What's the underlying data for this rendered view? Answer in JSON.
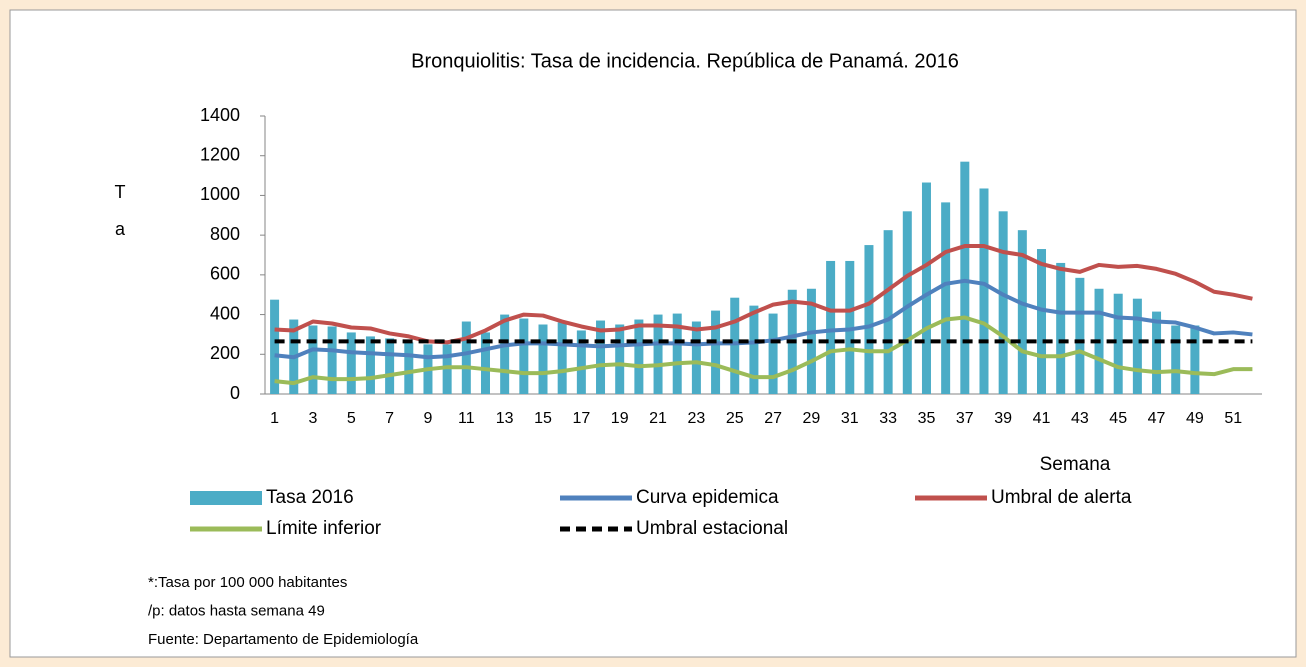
{
  "chart_data": {
    "type": "bar",
    "title": "Bronquiolitis: Tasa de incidencia. República de Panamá. 2016",
    "ylabel": [
      "T",
      "a"
    ],
    "xlabel": "Semana",
    "categories": [
      1,
      null,
      3,
      null,
      5,
      null,
      7,
      null,
      9,
      null,
      11,
      null,
      13,
      null,
      15,
      null,
      17,
      null,
      19,
      null,
      21,
      null,
      23,
      null,
      25,
      null,
      27,
      null,
      29,
      null,
      31,
      null,
      33,
      null,
      35,
      null,
      37,
      null,
      39,
      null,
      41,
      null,
      43,
      null,
      45,
      null,
      47,
      null,
      49,
      null,
      51,
      null
    ],
    "ylim": [
      0,
      1400
    ],
    "yticks": [
      0,
      200,
      400,
      600,
      800,
      1000,
      1200,
      1400
    ],
    "series": [
      {
        "name": "Tasa 2016",
        "type": "bar",
        "color": "#4bacc6",
        "values": [
          475,
          375,
          345,
          340,
          310,
          290,
          280,
          260,
          250,
          250,
          365,
          310,
          400,
          380,
          350,
          360,
          320,
          370,
          350,
          375,
          400,
          405,
          365,
          420,
          485,
          445,
          405,
          525,
          530,
          670,
          670,
          750,
          825,
          920,
          1065,
          965,
          1170,
          1035,
          920,
          825,
          730,
          660,
          585,
          530,
          505,
          480,
          415,
          345,
          345,
          null,
          null,
          null
        ]
      },
      {
        "name": "Curva epidemica",
        "type": "line",
        "color": "#4f81bd",
        "values": [
          195,
          185,
          225,
          220,
          210,
          205,
          200,
          195,
          185,
          190,
          205,
          225,
          245,
          255,
          255,
          250,
          245,
          240,
          245,
          250,
          255,
          255,
          250,
          255,
          255,
          260,
          270,
          290,
          310,
          320,
          325,
          340,
          375,
          440,
          500,
          555,
          570,
          555,
          500,
          455,
          425,
          410,
          410,
          410,
          385,
          380,
          365,
          360,
          335,
          305,
          310,
          300
        ]
      },
      {
        "name": "Umbral de alerta",
        "type": "line",
        "color": "#c0504d",
        "values": [
          325,
          320,
          365,
          355,
          335,
          330,
          305,
          290,
          265,
          260,
          280,
          320,
          370,
          400,
          395,
          365,
          340,
          320,
          325,
          345,
          345,
          340,
          325,
          335,
          365,
          410,
          450,
          465,
          455,
          420,
          420,
          455,
          525,
          595,
          650,
          715,
          745,
          745,
          715,
          700,
          655,
          630,
          615,
          650,
          640,
          645,
          630,
          605,
          565,
          515,
          500,
          480
        ]
      },
      {
        "name": "Límite inferior",
        "type": "line",
        "color": "#9bbb59",
        "values": [
          65,
          55,
          85,
          75,
          75,
          80,
          95,
          110,
          125,
          135,
          135,
          125,
          115,
          105,
          105,
          115,
          130,
          145,
          150,
          140,
          145,
          155,
          160,
          145,
          115,
          85,
          85,
          120,
          165,
          215,
          225,
          215,
          215,
          270,
          330,
          375,
          385,
          355,
          290,
          215,
          190,
          190,
          215,
          175,
          135,
          120,
          110,
          115,
          105,
          100,
          125,
          125
        ]
      },
      {
        "name": "Umbral estacional",
        "type": "line",
        "dashed": true,
        "color": "#000000",
        "values": [
          265,
          265,
          265,
          265,
          265,
          265,
          265,
          265,
          265,
          265,
          265,
          265,
          265,
          265,
          265,
          265,
          265,
          265,
          265,
          265,
          265,
          265,
          265,
          265,
          265,
          265,
          265,
          265,
          265,
          265,
          265,
          265,
          265,
          265,
          265,
          265,
          265,
          265,
          265,
          265,
          265,
          265,
          265,
          265,
          265,
          265,
          265,
          265,
          265,
          265,
          265,
          265
        ]
      }
    ],
    "notes": [
      "*:Tasa por 100 000 habitantes",
      "/p: datos hasta semana 49",
      "Fuente: Departamento de Epidemiología"
    ]
  }
}
